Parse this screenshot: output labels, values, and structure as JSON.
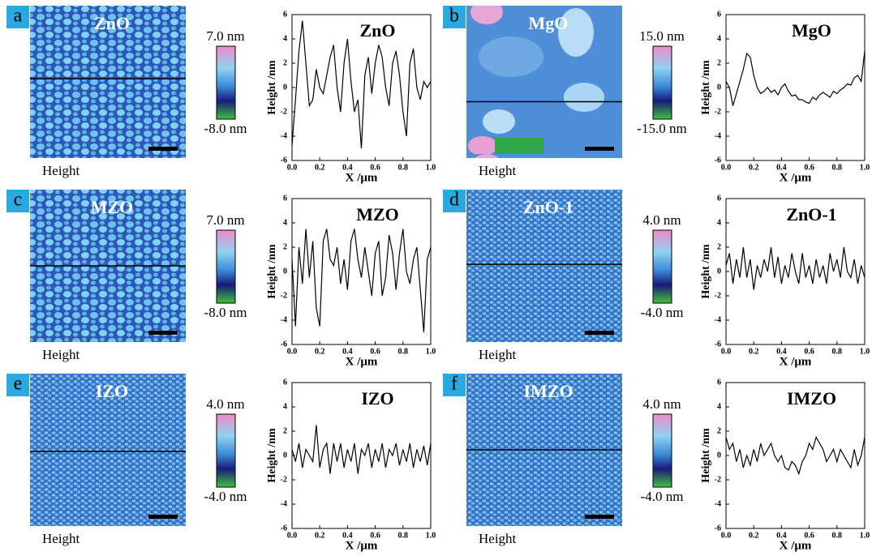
{
  "panels": [
    {
      "letter": "a",
      "image_title": "ZnO",
      "image_caption": "Height",
      "colorbar_max": "7.0 nm",
      "colorbar_min": "-8.0 nm"
    },
    {
      "letter": "b",
      "image_title": "MgO",
      "image_caption": "Height",
      "colorbar_max": "15.0 nm",
      "colorbar_min": "-15.0 nm"
    },
    {
      "letter": "c",
      "image_title": "MZO",
      "image_caption": "Height",
      "colorbar_max": "7.0 nm",
      "colorbar_min": "-8.0 nm"
    },
    {
      "letter": "d",
      "image_title": "ZnO-1",
      "image_caption": "Height",
      "colorbar_max": "4.0 nm",
      "colorbar_min": "-4.0 nm"
    },
    {
      "letter": "e",
      "image_title": "IZO",
      "image_caption": "Height",
      "colorbar_max": "4.0 nm",
      "colorbar_min": "-4.0 nm"
    },
    {
      "letter": "f",
      "image_title": "IMZO",
      "image_caption": "Height",
      "colorbar_max": "4.0 nm",
      "colorbar_min": "-4.0 nm"
    }
  ],
  "chart_data": [
    {
      "type": "line",
      "title": "ZnO",
      "xlabel": "X /μm",
      "ylabel": "Height /nm",
      "xlim": [
        0,
        1
      ],
      "ylim": [
        -6,
        6
      ],
      "xticks": [
        {
          "value": 0,
          "label": "0.0"
        },
        {
          "value": 0.2,
          "label": "0.2"
        },
        {
          "value": 0.4,
          "label": "0.4"
        },
        {
          "value": 0.6,
          "label": "0.6"
        },
        {
          "value": 0.8,
          "label": "0.8"
        },
        {
          "value": 1,
          "label": "1.0"
        }
      ],
      "yticks": [
        -6,
        -4,
        -2,
        0,
        2,
        4,
        6
      ],
      "x": [
        0,
        0.025,
        0.05,
        0.075,
        0.1,
        0.125,
        0.15,
        0.175,
        0.2,
        0.225,
        0.25,
        0.275,
        0.3,
        0.325,
        0.35,
        0.375,
        0.4,
        0.425,
        0.45,
        0.475,
        0.5,
        0.525,
        0.55,
        0.575,
        0.6,
        0.625,
        0.65,
        0.675,
        0.7,
        0.725,
        0.75,
        0.775,
        0.8,
        0.825,
        0.85,
        0.875,
        0.9,
        0.925,
        0.95,
        0.975,
        1
      ],
      "series": [
        {
          "color": "#000000",
          "values": [
            -4.8,
            -1,
            3,
            5.5,
            2,
            -1.5,
            -1,
            1.5,
            0,
            -0.5,
            1,
            2.5,
            3.5,
            0,
            -2,
            2,
            4,
            0.5,
            -2,
            -1,
            -5,
            1,
            2.5,
            -0.5,
            2,
            3.5,
            2.5,
            0,
            -1.5,
            2,
            3,
            1,
            -2,
            -4,
            2,
            3.2,
            0,
            -1,
            0.5,
            0,
            0.5
          ]
        }
      ]
    },
    {
      "type": "line",
      "title": "MgO",
      "xlabel": "X /μm",
      "ylabel": "Height /nm",
      "xlim": [
        0,
        1
      ],
      "ylim": [
        -6,
        6
      ],
      "xticks": [
        {
          "value": 0,
          "label": "0.0"
        },
        {
          "value": 0.2,
          "label": "0.2"
        },
        {
          "value": 0.4,
          "label": "0.4"
        },
        {
          "value": 0.6,
          "label": "0.6"
        },
        {
          "value": 0.8,
          "label": "0.8"
        },
        {
          "value": 1,
          "label": "1.0"
        }
      ],
      "yticks": [
        -6,
        -4,
        -2,
        0,
        2,
        4,
        6
      ],
      "x": [
        0,
        0.025,
        0.05,
        0.075,
        0.1,
        0.125,
        0.15,
        0.175,
        0.2,
        0.225,
        0.25,
        0.275,
        0.3,
        0.325,
        0.35,
        0.375,
        0.4,
        0.425,
        0.45,
        0.475,
        0.5,
        0.525,
        0.55,
        0.575,
        0.6,
        0.625,
        0.65,
        0.675,
        0.7,
        0.725,
        0.75,
        0.775,
        0.8,
        0.825,
        0.85,
        0.875,
        0.9,
        0.925,
        0.95,
        0.975,
        1
      ],
      "series": [
        {
          "color": "#000000",
          "values": [
            0.5,
            0,
            -1.5,
            -0.5,
            0.5,
            1.5,
            2.8,
            2.5,
            1,
            0,
            -0.5,
            -0.3,
            0,
            -0.4,
            -0.2,
            -0.6,
            0,
            0.3,
            -0.3,
            -0.7,
            -0.6,
            -1,
            -1,
            -1.2,
            -1.3,
            -0.8,
            -1,
            -0.6,
            -0.4,
            -0.6,
            -0.8,
            -0.3,
            -0.5,
            -0.2,
            0,
            0.3,
            0.2,
            0.8,
            1,
            0.5,
            3
          ]
        }
      ]
    },
    {
      "type": "line",
      "title": "MZO",
      "xlabel": "X /μm",
      "ylabel": "Height /nm",
      "xlim": [
        0,
        1
      ],
      "ylim": [
        -6,
        6
      ],
      "xticks": [
        {
          "value": 0,
          "label": "0.0"
        },
        {
          "value": 0.2,
          "label": "0.2"
        },
        {
          "value": 0.4,
          "label": "0.4"
        },
        {
          "value": 0.6,
          "label": "0.6"
        },
        {
          "value": 0.8,
          "label": "0.8"
        },
        {
          "value": 1,
          "label": "1.0"
        }
      ],
      "yticks": [
        -6,
        -4,
        -2,
        0,
        2,
        4,
        6
      ],
      "x": [
        0,
        0.025,
        0.05,
        0.075,
        0.1,
        0.125,
        0.15,
        0.175,
        0.2,
        0.225,
        0.25,
        0.275,
        0.3,
        0.325,
        0.35,
        0.375,
        0.4,
        0.425,
        0.45,
        0.475,
        0.5,
        0.525,
        0.55,
        0.575,
        0.6,
        0.625,
        0.65,
        0.675,
        0.7,
        0.725,
        0.75,
        0.775,
        0.8,
        0.825,
        0.85,
        0.875,
        0.9,
        0.925,
        0.95,
        0.975,
        1
      ],
      "series": [
        {
          "color": "#000000",
          "values": [
            1,
            -4.5,
            2,
            -1,
            3.5,
            -0.5,
            2.5,
            -3,
            -4.5,
            2.5,
            3.5,
            1,
            0.5,
            2,
            -1,
            1,
            -1.5,
            2.5,
            3.5,
            1,
            -0.5,
            2,
            0,
            -2,
            1.5,
            2.5,
            -2,
            -0.5,
            3,
            1.5,
            -1.5,
            1.5,
            3.5,
            0,
            -1,
            1,
            2,
            -1.5,
            -5,
            1,
            2
          ]
        }
      ]
    },
    {
      "type": "line",
      "title": "ZnO-1",
      "xlabel": "X /μm",
      "ylabel": "Height /nm",
      "xlim": [
        0,
        1
      ],
      "ylim": [
        -6,
        6
      ],
      "xticks": [
        {
          "value": 0,
          "label": "0.0"
        },
        {
          "value": 0.2,
          "label": "0.2"
        },
        {
          "value": 0.4,
          "label": "0.4"
        },
        {
          "value": 0.6,
          "label": "0.6"
        },
        {
          "value": 0.8,
          "label": "0.8"
        },
        {
          "value": 1,
          "label": "1.0"
        }
      ],
      "yticks": [
        -6,
        -4,
        -2,
        0,
        2,
        4,
        6
      ],
      "x": [
        0,
        0.025,
        0.05,
        0.075,
        0.1,
        0.125,
        0.15,
        0.175,
        0.2,
        0.225,
        0.25,
        0.275,
        0.3,
        0.325,
        0.35,
        0.375,
        0.4,
        0.425,
        0.45,
        0.475,
        0.5,
        0.525,
        0.55,
        0.575,
        0.6,
        0.625,
        0.65,
        0.675,
        0.7,
        0.725,
        0.75,
        0.775,
        0.8,
        0.825,
        0.85,
        0.875,
        0.9,
        0.925,
        0.95,
        0.975,
        1
      ],
      "series": [
        {
          "color": "#000000",
          "values": [
            0.5,
            1.5,
            -1,
            1,
            -0.5,
            2,
            -0.5,
            1,
            -1.5,
            0.5,
            -0.5,
            1,
            0,
            2,
            -0.5,
            1.2,
            -1,
            0.5,
            -0.5,
            1.5,
            0,
            -1,
            1.5,
            -0.5,
            0.5,
            -1,
            1,
            -0.5,
            0.5,
            -1,
            1.5,
            0,
            1,
            -0.5,
            2,
            0,
            -0.5,
            1,
            -1,
            0.5,
            -0.5
          ]
        }
      ]
    },
    {
      "type": "line",
      "title": "IZO",
      "xlabel": "X /μm",
      "ylabel": "Height /nm",
      "xlim": [
        0,
        1
      ],
      "ylim": [
        -6,
        6
      ],
      "xticks": [
        {
          "value": 0,
          "label": "0.0"
        },
        {
          "value": 0.2,
          "label": "0.2"
        },
        {
          "value": 0.4,
          "label": "0.4"
        },
        {
          "value": 0.6,
          "label": "0.6"
        },
        {
          "value": 0.8,
          "label": "0.8"
        },
        {
          "value": 1,
          "label": "1.0"
        }
      ],
      "yticks": [
        -6,
        -4,
        -2,
        0,
        2,
        4,
        6
      ],
      "x": [
        0,
        0.025,
        0.05,
        0.075,
        0.1,
        0.125,
        0.15,
        0.175,
        0.2,
        0.225,
        0.25,
        0.275,
        0.3,
        0.325,
        0.35,
        0.375,
        0.4,
        0.425,
        0.45,
        0.475,
        0.5,
        0.525,
        0.55,
        0.575,
        0.6,
        0.625,
        0.65,
        0.675,
        0.7,
        0.725,
        0.75,
        0.775,
        0.8,
        0.825,
        0.85,
        0.875,
        0.9,
        0.925,
        0.95,
        0.975,
        1
      ],
      "series": [
        {
          "color": "#000000",
          "values": [
            0.5,
            -0.5,
            1,
            -1,
            0.5,
            0,
            -0.5,
            2.5,
            -1,
            0.5,
            1,
            -1.5,
            1,
            -0.5,
            1,
            -1,
            0.5,
            -0.5,
            1,
            -1.5,
            0.5,
            0,
            1,
            -1,
            0.5,
            -0.5,
            1,
            -1,
            0.5,
            0,
            1,
            -0.8,
            0.5,
            -0.5,
            1,
            -1,
            0.5,
            -0.5,
            0.8,
            -0.8,
            1
          ]
        }
      ]
    },
    {
      "type": "line",
      "title": "IMZO",
      "xlabel": "X /μm",
      "ylabel": "Height /nm",
      "xlim": [
        0,
        1
      ],
      "ylim": [
        -6,
        6
      ],
      "xticks": [
        {
          "value": 0,
          "label": "0.0"
        },
        {
          "value": 0.2,
          "label": "0.2"
        },
        {
          "value": 0.4,
          "label": "0.4"
        },
        {
          "value": 0.6,
          "label": "0.6"
        },
        {
          "value": 0.8,
          "label": "0.8"
        },
        {
          "value": 1,
          "label": "1.0"
        }
      ],
      "yticks": [
        -6,
        -4,
        -2,
        0,
        2,
        4,
        6
      ],
      "x": [
        0,
        0.025,
        0.05,
        0.075,
        0.1,
        0.125,
        0.15,
        0.175,
        0.2,
        0.225,
        0.25,
        0.275,
        0.3,
        0.325,
        0.35,
        0.375,
        0.4,
        0.425,
        0.45,
        0.475,
        0.5,
        0.525,
        0.55,
        0.575,
        0.6,
        0.625,
        0.65,
        0.675,
        0.7,
        0.725,
        0.75,
        0.775,
        0.8,
        0.825,
        0.85,
        0.875,
        0.9,
        0.925,
        0.95,
        0.975,
        1
      ],
      "series": [
        {
          "color": "#000000",
          "values": [
            1.5,
            0.5,
            1,
            -0.5,
            0.5,
            -1,
            0,
            -0.8,
            0.5,
            -0.5,
            1,
            0,
            0.5,
            1,
            0,
            -0.5,
            0,
            -1,
            -1.2,
            -0.5,
            -0.8,
            -1.5,
            -0.5,
            0,
            1,
            0.5,
            1.5,
            1,
            0.5,
            -0.5,
            0,
            0.5,
            -0.5,
            0.5,
            0,
            -0.5,
            -1,
            0.5,
            -0.8,
            0,
            1.5
          ]
        }
      ]
    }
  ]
}
